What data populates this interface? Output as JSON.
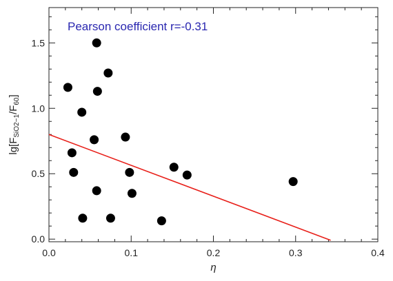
{
  "chart_data": {
    "type": "scatter",
    "title": "",
    "xlabel": "η",
    "ylabel": {
      "prefix": "lg[F",
      "sub1": "SiO2−1",
      "mid": "/F",
      "sub2": "60",
      "suffix": "]"
    },
    "xlim": [
      0.0,
      0.4
    ],
    "ylim": [
      -0.02,
      1.77
    ],
    "x_ticks": [
      0.0,
      0.1,
      0.2,
      0.3,
      0.4
    ],
    "x_tick_labels": [
      "0.0",
      "0.1",
      "0.2",
      "0.3",
      "0.4"
    ],
    "x_minor_step": 0.02,
    "y_ticks": [
      0.0,
      0.5,
      1.0,
      1.5
    ],
    "y_tick_labels": [
      "0.0",
      "0.5",
      "1.0",
      "1.5"
    ],
    "y_minor_step": 0.1,
    "grid": false,
    "points": [
      {
        "x": 0.023,
        "y": 1.16
      },
      {
        "x": 0.028,
        "y": 0.66
      },
      {
        "x": 0.03,
        "y": 0.51
      },
      {
        "x": 0.04,
        "y": 0.97
      },
      {
        "x": 0.041,
        "y": 0.16
      },
      {
        "x": 0.055,
        "y": 0.76
      },
      {
        "x": 0.058,
        "y": 1.5
      },
      {
        "x": 0.058,
        "y": 0.37
      },
      {
        "x": 0.059,
        "y": 1.13
      },
      {
        "x": 0.072,
        "y": 1.27
      },
      {
        "x": 0.075,
        "y": 0.16
      },
      {
        "x": 0.093,
        "y": 0.78
      },
      {
        "x": 0.098,
        "y": 0.51
      },
      {
        "x": 0.101,
        "y": 0.35
      },
      {
        "x": 0.137,
        "y": 0.14
      },
      {
        "x": 0.152,
        "y": 0.55
      },
      {
        "x": 0.168,
        "y": 0.49
      },
      {
        "x": 0.297,
        "y": 0.44
      }
    ],
    "fit_line": {
      "intercept": 0.8,
      "slope": -2.36,
      "x_end": 0.3426,
      "color": "#e8201a"
    },
    "annotation": {
      "text": "Pearson coefficient r=-0.31",
      "color": "#2a27b0"
    },
    "marker_color": "#000000",
    "axis_color": "#222222"
  }
}
